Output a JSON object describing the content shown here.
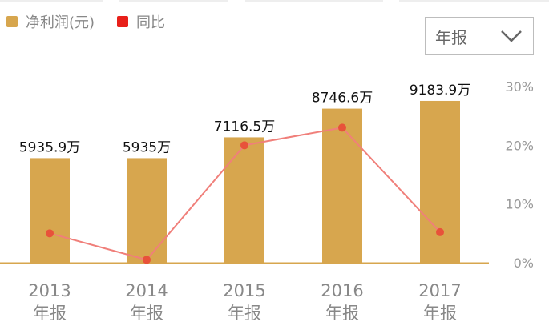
{
  "legend": {
    "items": [
      {
        "label": "净利润(元)",
        "color": "#D7A64E"
      },
      {
        "label": "同比",
        "color": "#E8201A"
      }
    ]
  },
  "period_select": {
    "value": "年报",
    "icon": "chevron-down-icon"
  },
  "chart_data": {
    "type": "bar",
    "categories": [
      {
        "year": "2013",
        "period": "年报"
      },
      {
        "year": "2014",
        "period": "年报"
      },
      {
        "year": "2015",
        "period": "年报"
      },
      {
        "year": "2016",
        "period": "年报"
      },
      {
        "year": "2017",
        "period": "年报"
      }
    ],
    "series": [
      {
        "name": "净利润(元)",
        "kind": "bar",
        "unit": "万",
        "color": "#D7A64E",
        "values": [
          5935.9,
          5935,
          7116.5,
          8746.6,
          9183.9
        ],
        "labels": [
          "5935.9万",
          "5935万",
          "7116.5万",
          "8746.6万",
          "9183.9万"
        ]
      },
      {
        "name": "同比",
        "kind": "line",
        "axis": "right",
        "color": "#F07F7A",
        "marker_color": "#E8523A",
        "values": [
          5,
          0.5,
          20,
          23,
          5.2
        ]
      }
    ],
    "y_right": {
      "ticks": [
        "30%",
        "20%",
        "10%",
        "0%"
      ],
      "tick_values": [
        30,
        20,
        10,
        0
      ],
      "range": [
        0,
        30
      ]
    },
    "bar_range": [
      0,
      14000
    ],
    "colors": {
      "axis": "#D7A64E"
    }
  }
}
